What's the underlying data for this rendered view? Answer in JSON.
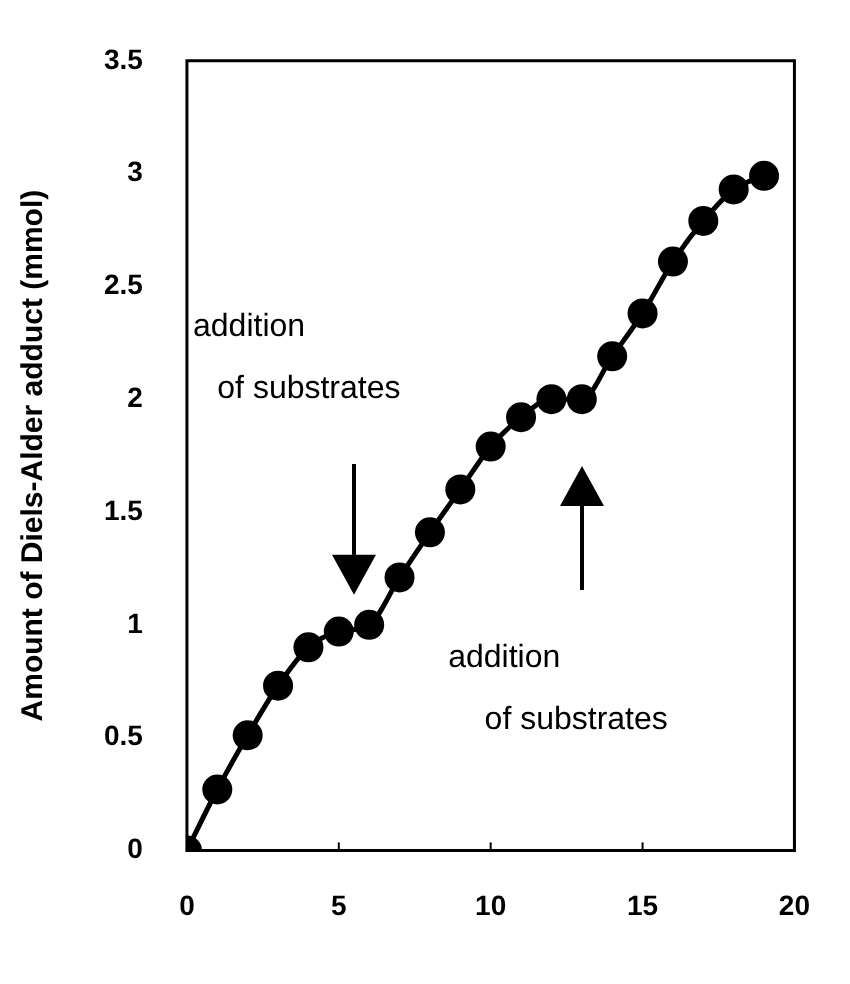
{
  "chart_data": {
    "type": "line",
    "ylabel": "Amount of Diels-Alder adduct (mmol)",
    "x": [
      0,
      1,
      2,
      3,
      4,
      5,
      6,
      7,
      8,
      9,
      10,
      11,
      12,
      13,
      14,
      15,
      16,
      17,
      18,
      19
    ],
    "series": [
      {
        "color": "#000000",
        "values": [
          0,
          0.27,
          0.51,
          0.73,
          0.9,
          0.97,
          1.0,
          1.21,
          1.41,
          1.6,
          1.79,
          1.92,
          2.0,
          2.0,
          2.19,
          2.38,
          2.61,
          2.79,
          2.93,
          2.99
        ]
      }
    ],
    "xlim": [
      0,
      20
    ],
    "xticks": [
      0,
      5,
      10,
      15,
      20
    ],
    "ylim": [
      0,
      3.5
    ],
    "yticks": [
      0,
      0.5,
      1,
      1.5,
      2,
      2.5,
      3,
      3.5
    ],
    "annotations": [
      "addition\nof substrates",
      "addition\nof substrates"
    ],
    "grid": false,
    "legend": false,
    "marker": "circle",
    "line_style": "solid"
  }
}
